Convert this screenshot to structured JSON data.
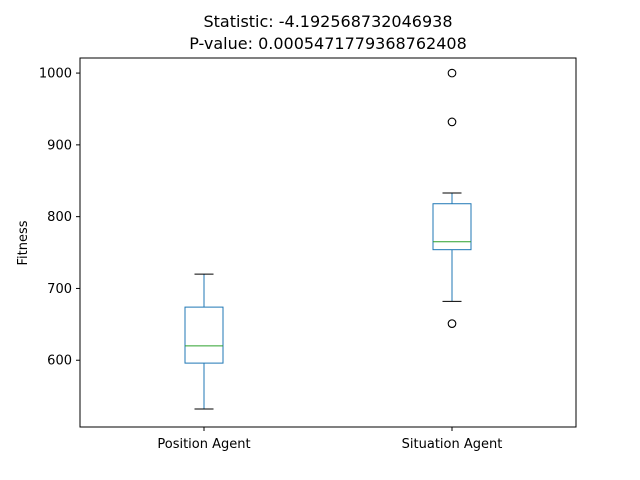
{
  "chart_data": {
    "type": "box",
    "title_lines": [
      "Statistic: -4.192568732046938",
      "P-value: 0.0005471779368762408"
    ],
    "xlabel": "",
    "ylabel": "Fitness",
    "ylim": [
      507,
      1021
    ],
    "yticks": [
      600,
      700,
      800,
      900,
      1000
    ],
    "grid": false,
    "categories": [
      "Position Agent",
      "Situation Agent"
    ],
    "series": [
      {
        "name": "Position Agent",
        "whisker_low": 532,
        "q1": 596,
        "median": 620,
        "q3": 674,
        "whisker_high": 720,
        "outliers": []
      },
      {
        "name": "Situation Agent",
        "whisker_low": 682,
        "q1": 754,
        "median": 765,
        "q3": 818,
        "whisker_high": 833,
        "outliers": [
          651,
          932,
          1000
        ]
      }
    ],
    "colors": {
      "box": "#1f77b4",
      "median": "#2ca02c",
      "cap": "#000000",
      "outlier": "#000000"
    }
  }
}
